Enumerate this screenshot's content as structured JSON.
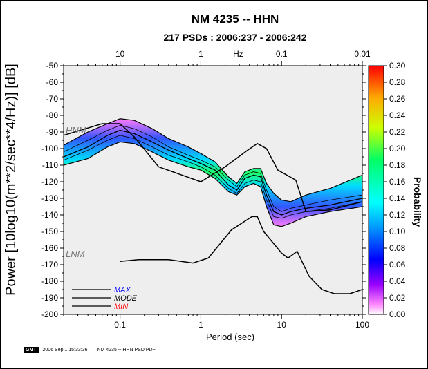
{
  "header": {
    "title": "NM 4235 -- HHN",
    "subtitle": "217 PSDs : 2006:237 - 2006:242"
  },
  "footer": {
    "logo_text": "GMT",
    "timestamp": "2006 Sep  1 15:33:36",
    "caption": "NM 4235 -- HHN PSD PDF"
  },
  "chart_data": {
    "type": "heatmap",
    "title": "NM 4235 -- HHN",
    "subtitle": "217 PSDs : 2006:237 - 2006:242",
    "xlabel": "Period (sec)",
    "ylabel": "Power [10log10(m**2/sec**4/Hz)] [dB]",
    "colorbar_label": "Probability",
    "x_scale": "log",
    "xlim": [
      0.02,
      100
    ],
    "ylim": [
      -200,
      -50
    ],
    "x_ticks": [
      "0.1",
      "1",
      "10",
      "100"
    ],
    "top_axis_label": "Hz",
    "top_ticks": [
      "10",
      "1",
      "0.1",
      "0.01"
    ],
    "y_ticks": [
      "-50",
      "-60",
      "-70",
      "-80",
      "-90",
      "-100",
      "-110",
      "-120",
      "-130",
      "-140",
      "-150",
      "-160",
      "-170",
      "-180",
      "-190",
      "-200"
    ],
    "colorbar_ticks": [
      "0.30",
      "0.28",
      "0.26",
      "0.24",
      "0.22",
      "0.20",
      "0.18",
      "0.16",
      "0.14",
      "0.12",
      "0.10",
      "0.08",
      "0.06",
      "0.04",
      "0.02",
      "0.00"
    ],
    "colorbar_range": [
      0,
      0.3
    ],
    "reference_labels": {
      "high": "HNM",
      "low": "LNM"
    },
    "legend": [
      {
        "name": "MAX",
        "color": "#0000ff"
      },
      {
        "name": "MODE",
        "color": "#000000"
      },
      {
        "name": "MIN",
        "color": "#ff0000"
      }
    ],
    "series": [
      {
        "name": "MODE",
        "x": [
          0.02,
          0.04,
          0.07,
          0.1,
          0.15,
          0.25,
          0.4,
          0.7,
          1.0,
          1.5,
          2.2,
          2.8,
          3.5,
          4.5,
          5.5,
          6.5,
          8.0,
          10.0,
          13.0,
          20.0,
          40.0,
          100.0
        ],
        "y": [
          -105,
          -99,
          -92,
          -89,
          -91,
          -96,
          -101,
          -106,
          -109,
          -113,
          -122,
          -125,
          -118,
          -116,
          -117,
          -128,
          -138,
          -140,
          -138,
          -136,
          -134,
          -130
        ]
      },
      {
        "name": "MAX",
        "x": [
          0.02,
          0.04,
          0.07,
          0.1,
          0.15,
          0.25,
          0.4,
          0.7,
          1.0,
          1.5,
          2.2,
          2.8,
          3.5,
          4.5,
          5.5,
          6.5,
          8.0,
          10.0,
          13.0,
          20.0,
          40.0,
          100.0
        ],
        "y": [
          -102,
          -95,
          -89,
          -86,
          -88,
          -93,
          -99,
          -104,
          -107,
          -111,
          -119,
          -123,
          -116,
          -114,
          -115,
          -125,
          -135,
          -138,
          -136,
          -134,
          -131,
          -128
        ]
      },
      {
        "name": "MIN",
        "x": [
          0.02,
          0.04,
          0.07,
          0.1,
          0.15,
          0.25,
          0.4,
          0.7,
          1.0,
          1.5,
          2.2,
          2.8,
          3.5,
          4.5,
          5.5,
          6.5,
          8.0,
          10.0,
          13.0,
          20.0,
          40.0,
          100.0
        ],
        "y": [
          -107,
          -101,
          -95,
          -92,
          -94,
          -99,
          -104,
          -108,
          -111,
          -116,
          -124,
          -127,
          -121,
          -119,
          -120,
          -131,
          -141,
          -142,
          -140,
          -138,
          -136,
          -132
        ]
      },
      {
        "name": "HNM",
        "x": [
          0.02,
          0.06,
          0.1,
          0.15,
          0.3,
          1.0,
          2.0,
          3.8,
          5.0,
          6.5,
          9.0,
          15.0,
          20.0,
          40.0,
          100.0
        ],
        "y": [
          -92,
          -85,
          -85,
          -93,
          -111,
          -120,
          -111,
          -101,
          -97,
          -100,
          -113,
          -119,
          -138,
          -137,
          -132
        ]
      },
      {
        "name": "LNM",
        "x": [
          0.1,
          0.17,
          0.4,
          0.8,
          1.24,
          2.4,
          4.3,
          5.0,
          6.0,
          10.0,
          12.0,
          15.6,
          21.9,
          31.6,
          45.0,
          70.0,
          100.0
        ],
        "y": [
          -168,
          -167,
          -167,
          -169,
          -166,
          -149,
          -141,
          -141,
          -150,
          -163,
          -166,
          -162,
          -177,
          -185,
          -187.5,
          -187.5,
          -185
        ]
      }
    ],
    "pdf_band": {
      "x": [
        0.02,
        0.04,
        0.07,
        0.1,
        0.15,
        0.25,
        0.4,
        0.7,
        1.0,
        1.5,
        2.2,
        2.8,
        3.5,
        4.5,
        5.5,
        6.5,
        8.0,
        10.0,
        13.0,
        20.0,
        40.0,
        100.0
      ],
      "upper": [
        -98,
        -90,
        -85,
        -82,
        -83,
        -88,
        -94,
        -99,
        -103,
        -108,
        -117,
        -121,
        -114,
        -112,
        -112,
        -121,
        -127,
        -131,
        -132,
        -128,
        -124,
        -116
      ],
      "lower": [
        -110,
        -106,
        -99,
        -96,
        -97,
        -102,
        -107,
        -111,
        -113,
        -118,
        -126,
        -128,
        -123,
        -121,
        -123,
        -135,
        -146,
        -147,
        -145,
        -141,
        -138,
        -135
      ]
    }
  }
}
